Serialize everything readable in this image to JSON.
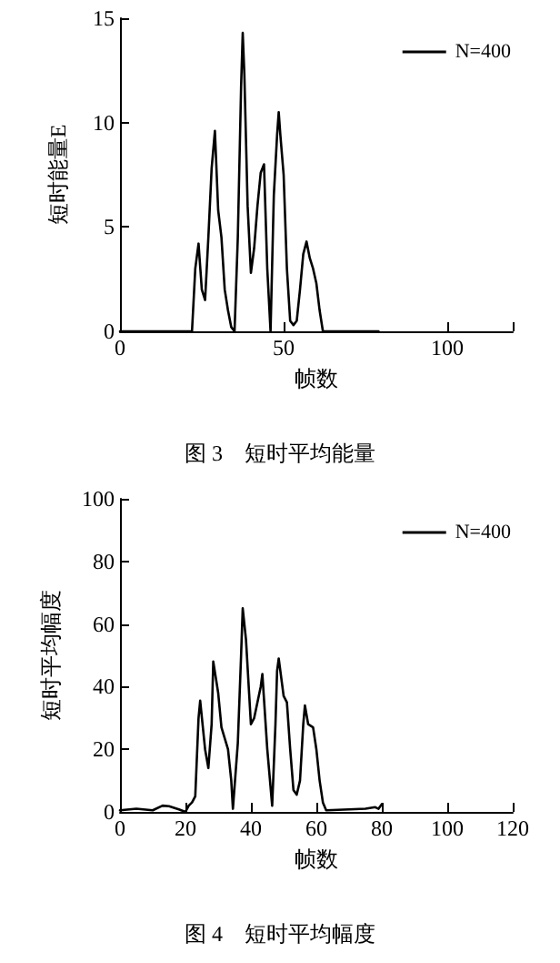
{
  "chart_data": [
    {
      "type": "line",
      "title": "图 3　短时平均能量",
      "xlabel": "帧数",
      "ylabel": "短时能量E",
      "xlim": [
        0,
        120
      ],
      "xticks": [
        0,
        50,
        100,
        {
          "value": 120,
          "label": null
        }
      ],
      "ylim": [
        0,
        15
      ],
      "yticks": [
        0,
        5,
        10,
        15
      ],
      "grid": false,
      "legend": "top right",
      "marker": "none",
      "line_style": "solid",
      "series": [
        {
          "name": "N=400",
          "color": "#000000",
          "x": [
            0,
            22,
            23,
            24,
            25,
            26,
            27,
            28,
            29,
            30,
            31,
            32,
            33,
            34,
            35,
            36,
            37,
            37.5,
            38,
            39,
            40,
            41,
            42,
            43,
            44,
            45,
            46,
            47,
            48,
            48.5,
            49,
            50,
            51,
            52,
            53,
            54,
            55,
            56,
            57,
            58,
            59,
            60,
            61,
            62,
            79
          ],
          "values": [
            0,
            0,
            3,
            4.2,
            2,
            1.5,
            4.5,
            7.8,
            9.6,
            5.8,
            4.5,
            2,
            1,
            0.2,
            0,
            4.5,
            11.7,
            14.3,
            12.3,
            6,
            2.8,
            4,
            6,
            7.6,
            8,
            3,
            0,
            6.5,
            9.4,
            10.5,
            9.4,
            7.5,
            3,
            0.5,
            0.3,
            0.5,
            2,
            3.7,
            4.3,
            3.5,
            3,
            2.3,
            1,
            0,
            0
          ]
        }
      ]
    },
    {
      "type": "line",
      "title": "图 4　短时平均幅度",
      "xlabel": "帧数",
      "ylabel": "短时平均幅度",
      "xlim": [
        0,
        120
      ],
      "xticks": [
        0,
        20,
        40,
        60,
        80,
        100,
        120
      ],
      "ylim": [
        0,
        100
      ],
      "yticks": [
        0,
        20,
        40,
        60,
        80,
        100
      ],
      "grid": false,
      "legend": "top right",
      "marker": "none",
      "line_style": "solid",
      "series": [
        {
          "name": "N=400",
          "color": "#000000",
          "x": [
            0,
            5,
            10,
            13,
            15,
            18,
            20,
            21,
            22,
            23,
            24,
            24.5,
            26,
            27,
            28,
            28.5,
            30,
            31,
            33,
            34,
            34.5,
            36,
            37,
            37.5,
            38.5,
            40,
            41,
            43,
            43.5,
            45,
            46.5,
            47.5,
            48,
            48.5,
            50,
            51,
            52,
            53,
            54,
            55,
            56,
            56.5,
            57.5,
            59,
            60,
            61,
            62,
            63,
            70,
            75,
            78,
            79,
            80
          ],
          "values": [
            0.5,
            1,
            0.5,
            2,
            1.8,
            0.8,
            0,
            2,
            3,
            5,
            30,
            35.5,
            20,
            14,
            28,
            48,
            38,
            27,
            20,
            10,
            1,
            22,
            50,
            65,
            55,
            28,
            30,
            40,
            44,
            20,
            2,
            28,
            45,
            49,
            37,
            35,
            20,
            7,
            5.5,
            10,
            28,
            34,
            28,
            27,
            20,
            10,
            3,
            0.5,
            0.8,
            1,
            1.5,
            1,
            2.5
          ]
        }
      ]
    }
  ]
}
